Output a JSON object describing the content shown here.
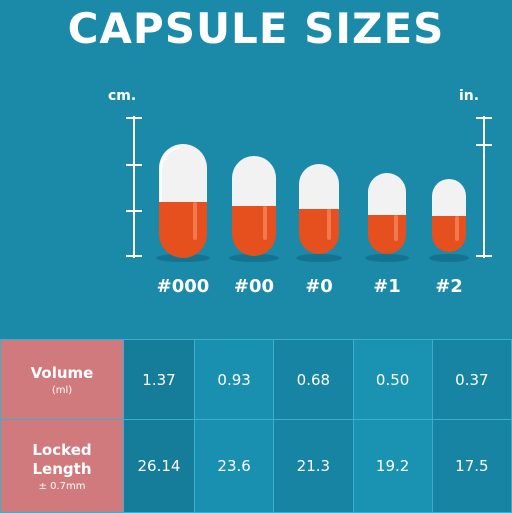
{
  "title": "CAPSULE SIZES",
  "units": {
    "left": "cm.",
    "right": "in."
  },
  "capsules": [
    {
      "label": "#000"
    },
    {
      "label": "#00"
    },
    {
      "label": "#0"
    },
    {
      "label": "#1"
    },
    {
      "label": "#2"
    }
  ],
  "colors": {
    "background": "#1a8aa8",
    "capsule_top": "#f2f2f2",
    "capsule_bottom": "#e5501e",
    "row_header": "#d07a7e"
  },
  "table": {
    "rows": [
      {
        "label": "Volume",
        "sub": "(ml)",
        "values": [
          "1.37",
          "0.93",
          "0.68",
          "0.50",
          "0.37"
        ]
      },
      {
        "label": "Locked\nLength",
        "label_line1": "Locked",
        "label_line2": "Length",
        "sub": "± 0.7mm",
        "values": [
          "26.14",
          "23.6",
          "21.3",
          "19.2",
          "17.5"
        ]
      }
    ]
  }
}
